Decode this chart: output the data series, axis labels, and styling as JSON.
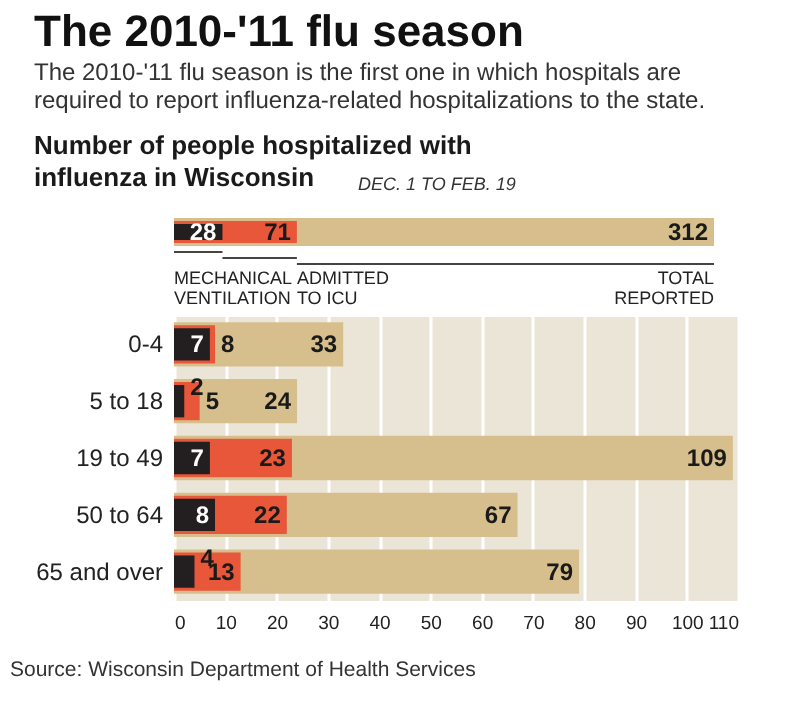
{
  "chart_data": [
    {
      "type": "bar",
      "title": "The 2010-'11 flu season",
      "subtitle": "The 2010-'11 flu season is the first one in which hospitals are required to report influenza-related hospitalizations to the state.",
      "annotations": [
        "Number of people hospitalized with influenza in Wisconsin",
        "DEC. 1 TO FEB. 19"
      ],
      "orientation": "horizontal",
      "categories": [
        null
      ],
      "series": [
        {
          "name": "MECHANICAL VENTILATION",
          "color": "#231f20",
          "values": [
            28
          ]
        },
        {
          "name": "ADMITTED TO ICU",
          "color": "#e8573a",
          "values": [
            71
          ]
        },
        {
          "name": "TOTAL REPORTED",
          "color": "#d6bf8c",
          "values": [
            312
          ]
        }
      ],
      "data_labels": true
    },
    {
      "type": "bar",
      "orientation": "horizontal",
      "categories": [
        "0-4",
        "5 to 18",
        "19 to 49",
        "50 to 64",
        "65 and over"
      ],
      "series": [
        {
          "color": "#231f20",
          "values": [
            7,
            2,
            7,
            8,
            4
          ]
        },
        {
          "color": "#e8573a",
          "values": [
            8,
            5,
            23,
            22,
            13
          ]
        },
        {
          "color": "#d6bf8c",
          "values": [
            33,
            24,
            109,
            67,
            79
          ]
        }
      ],
      "xlim": [
        0,
        110
      ],
      "xticks": [
        0,
        10,
        20,
        30,
        40,
        50,
        60,
        70,
        80,
        90,
        100,
        110
      ],
      "grid": "x",
      "data_labels": true,
      "annotations": [
        "Source: Wisconsin Department of Health Services"
      ]
    }
  ]
}
